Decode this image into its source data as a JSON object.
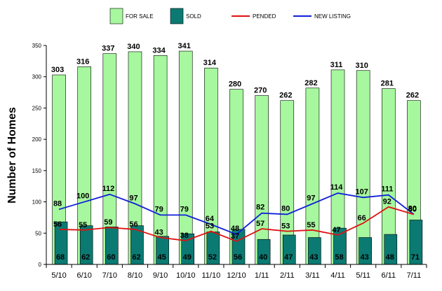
{
  "chart_data": {
    "type": "bar",
    "title": "",
    "xlabel": "",
    "ylabel": "Number of Homes",
    "ylim": [
      0,
      350
    ],
    "yticks": [
      0,
      50,
      100,
      150,
      200,
      250,
      300,
      350
    ],
    "grid": false,
    "legend_position": "top",
    "categories": [
      "5/10",
      "6/10",
      "7/10",
      "8/10",
      "9/10",
      "10/10",
      "11/10",
      "12/10",
      "1/11",
      "2/11",
      "3/11",
      "4/11",
      "5/11",
      "6/11",
      "7/11"
    ],
    "series": [
      {
        "name": "FOR SALE",
        "kind": "bar",
        "color": "#a6f79e",
        "values": [
          303,
          316,
          337,
          340,
          334,
          341,
          314,
          280,
          270,
          262,
          282,
          311,
          310,
          281,
          262
        ]
      },
      {
        "name": "SOLD",
        "kind": "bar",
        "color": "#0b7a73",
        "values": [
          68,
          62,
          60,
          62,
          45,
          49,
          52,
          56,
          40,
          47,
          43,
          58,
          43,
          48,
          71
        ]
      },
      {
        "name": "PENDED",
        "kind": "line",
        "color": "#e01010",
        "values": [
          56,
          55,
          59,
          56,
          43,
          38,
          53,
          37,
          57,
          53,
          55,
          47,
          66,
          92,
          80
        ]
      },
      {
        "name": "NEW LISTING",
        "kind": "line",
        "color": "#1020d8",
        "values": [
          88,
          100,
          112,
          97,
          79,
          79,
          64,
          48,
          82,
          80,
          97,
          114,
          107,
          111,
          80
        ]
      }
    ]
  }
}
